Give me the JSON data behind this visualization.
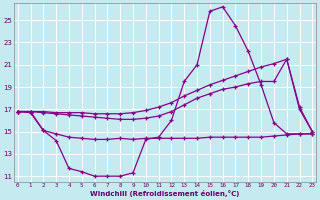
{
  "bg_color": "#c5eaf0",
  "line_color": "#880088",
  "grid_color": "#aadddd",
  "text_color": "#660066",
  "xlabel": "Windchill (Refroidissement éolien,°C)",
  "xlim": [
    -0.3,
    23.3
  ],
  "ylim": [
    10.5,
    26.5
  ],
  "xticks": [
    0,
    1,
    2,
    3,
    4,
    5,
    6,
    7,
    8,
    9,
    10,
    11,
    12,
    13,
    14,
    15,
    16,
    17,
    18,
    19,
    20,
    21,
    22,
    23
  ],
  "yticks": [
    11,
    13,
    15,
    17,
    19,
    21,
    23,
    25
  ],
  "line1_x": [
    0,
    1,
    2,
    3,
    4,
    5,
    6,
    7,
    8,
    9,
    10,
    11,
    12,
    13,
    14,
    15,
    16,
    17,
    18,
    19,
    20,
    21,
    22,
    23
  ],
  "line1_y": [
    16.8,
    16.8,
    15.1,
    14.2,
    11.7,
    11.4,
    11.0,
    11.0,
    11.0,
    11.3,
    14.3,
    14.5,
    16.0,
    19.5,
    21.0,
    25.8,
    26.2,
    24.5,
    22.2,
    19.2,
    15.8,
    14.8,
    14.8,
    14.8
  ],
  "line2_x": [
    0,
    1,
    2,
    3,
    4,
    5,
    6,
    7,
    8,
    9,
    10,
    11,
    12,
    13,
    14,
    15,
    16,
    17,
    18,
    19,
    20,
    21,
    22,
    23
  ],
  "line2_y": [
    16.8,
    16.7,
    15.1,
    14.8,
    14.5,
    14.4,
    14.3,
    14.3,
    14.4,
    14.3,
    14.4,
    14.4,
    14.4,
    14.4,
    14.4,
    14.5,
    14.5,
    14.5,
    14.5,
    14.5,
    14.6,
    14.7,
    14.8,
    14.8
  ],
  "line3_x": [
    0,
    1,
    2,
    3,
    4,
    5,
    6,
    7,
    8,
    9,
    10,
    11,
    12,
    13,
    14,
    15,
    16,
    17,
    18,
    19,
    20,
    21,
    22,
    23
  ],
  "line3_y": [
    16.8,
    16.8,
    16.7,
    16.6,
    16.5,
    16.4,
    16.3,
    16.2,
    16.1,
    16.1,
    16.2,
    16.4,
    16.8,
    17.4,
    18.0,
    18.4,
    18.8,
    19.0,
    19.3,
    19.5,
    19.5,
    21.5,
    17.0,
    15.0
  ],
  "line4_x": [
    0,
    1,
    2,
    3,
    4,
    5,
    6,
    7,
    8,
    9,
    10,
    11,
    12,
    13,
    14,
    15,
    16,
    17,
    18,
    19,
    20,
    21,
    22,
    23
  ],
  "line4_y": [
    16.8,
    16.8,
    16.8,
    16.7,
    16.7,
    16.7,
    16.6,
    16.6,
    16.6,
    16.7,
    16.9,
    17.2,
    17.6,
    18.2,
    18.7,
    19.2,
    19.6,
    20.0,
    20.4,
    20.8,
    21.1,
    21.5,
    17.2,
    15.0
  ]
}
